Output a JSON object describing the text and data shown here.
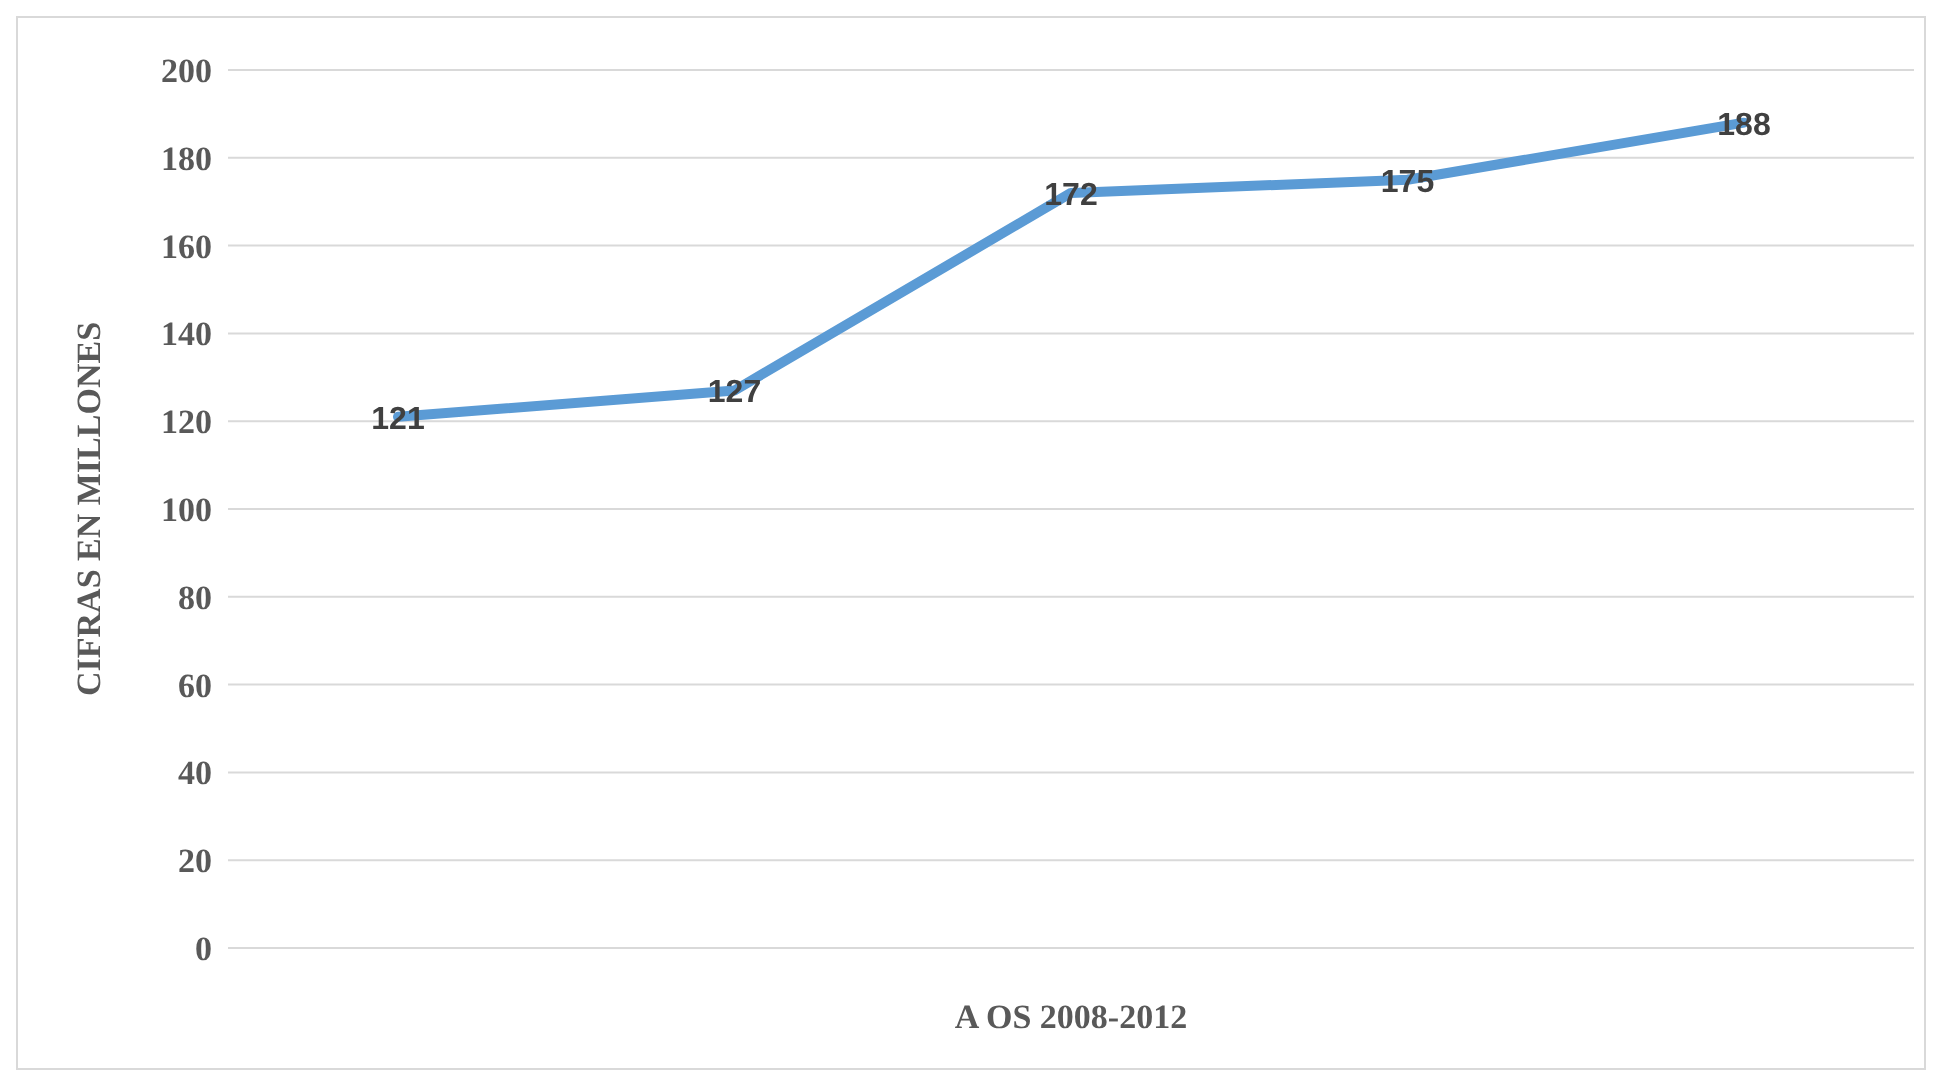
{
  "chart_data": {
    "type": "line",
    "xlabel": "A   OS 2008-2012",
    "ylabel": "CIFRAS EN MILLONES",
    "categories": [
      null,
      null,
      null,
      null,
      null
    ],
    "series": [
      {
        "color": "#5b9bd5",
        "values": [
          121,
          127,
          172,
          175,
          188
        ]
      }
    ],
    "ylim": [
      0,
      200
    ],
    "yticks": [
      0,
      20,
      40,
      60,
      80,
      100,
      120,
      140,
      160,
      180,
      200
    ],
    "grid": "y",
    "data_labels": true,
    "marker": "none",
    "line_style": "solid",
    "legend": false
  }
}
